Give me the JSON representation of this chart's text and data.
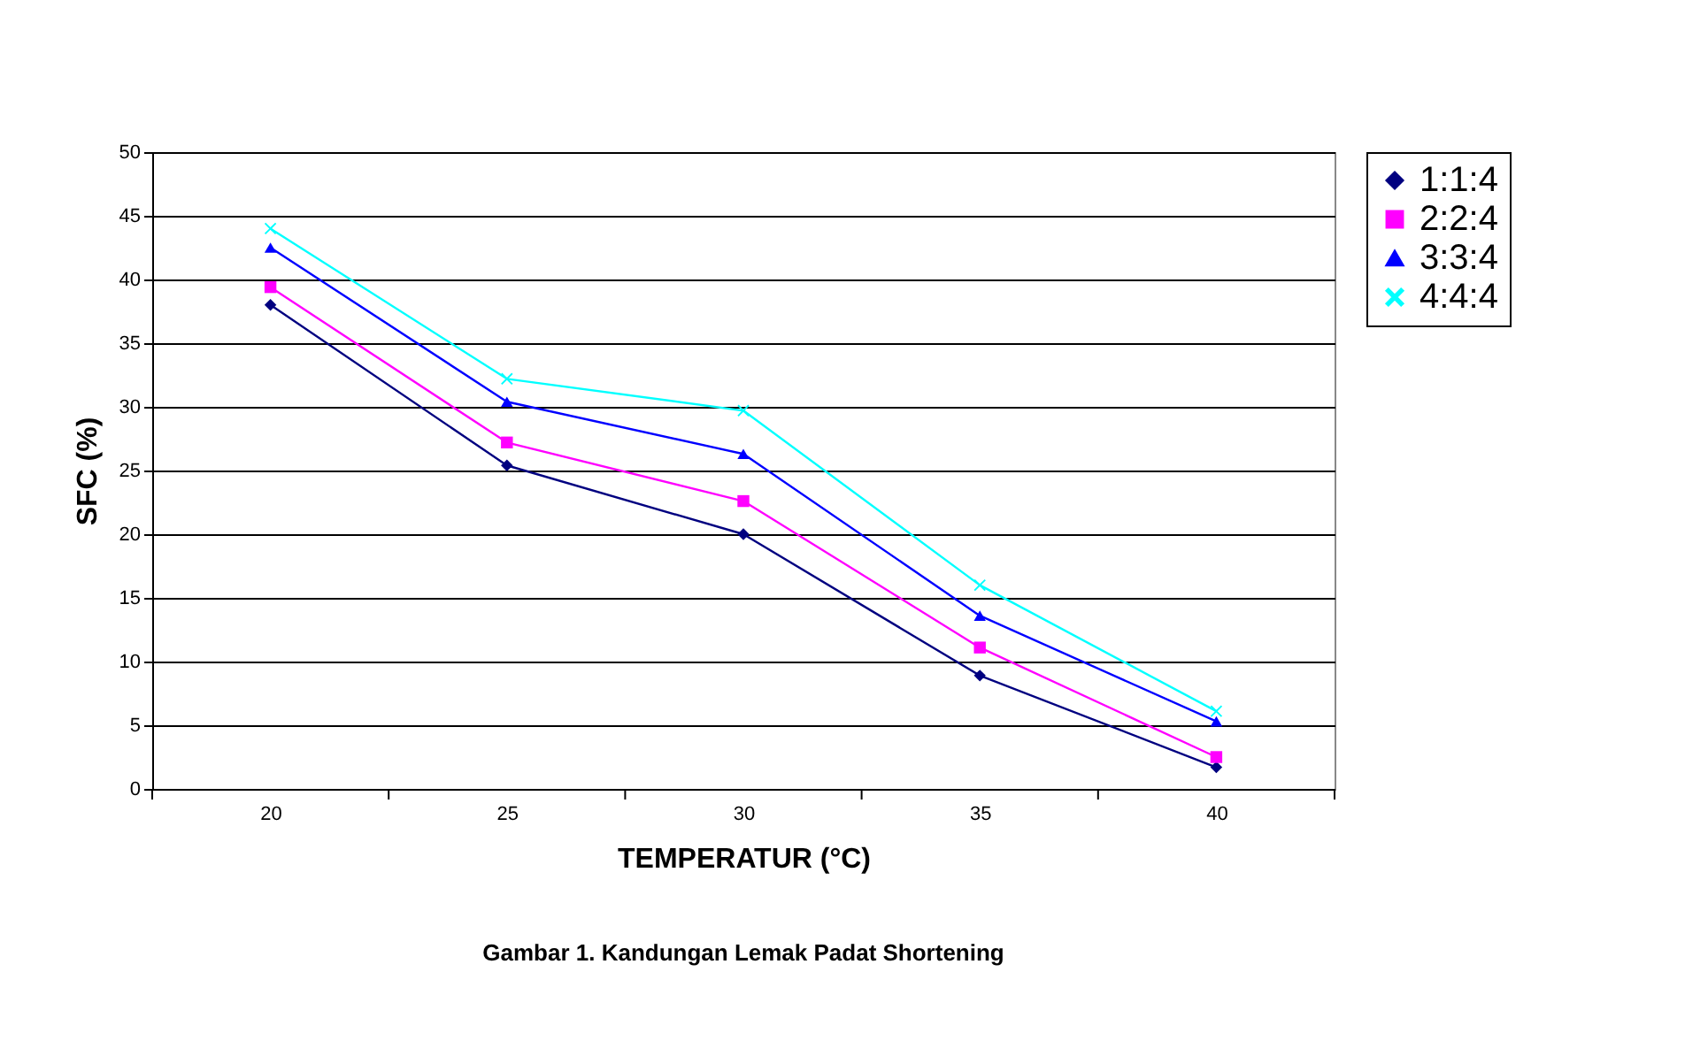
{
  "chart_data": {
    "type": "line",
    "title": "Gambar 1. Kandungan Lemak Padat Shortening",
    "xlabel": "TEMPERATUR (°C)",
    "ylabel": "SFC (%)",
    "categories": [
      "20",
      "25",
      "30",
      "35",
      "40"
    ],
    "series": [
      {
        "name": "1:1:4",
        "color": "#000080",
        "marker": "diamond",
        "values": [
          38,
          25.4,
          20,
          8.9,
          1.7
        ]
      },
      {
        "name": "2:2:4",
        "color": "#ff00ff",
        "marker": "square",
        "values": [
          39.4,
          27.2,
          22.6,
          11.1,
          2.5
        ]
      },
      {
        "name": "3:3:4",
        "color": "#0000ff",
        "marker": "triangle",
        "values": [
          42.5,
          30.4,
          26.3,
          13.6,
          5.3
        ]
      },
      {
        "name": "4:4:4",
        "color": "#00ffff",
        "marker": "cross",
        "values": [
          44,
          32.2,
          29.7,
          16,
          6.1
        ]
      }
    ],
    "ylim": [
      0,
      50
    ],
    "yticks": [
      0,
      5,
      10,
      15,
      20,
      25,
      30,
      35,
      40,
      45,
      50
    ],
    "grid": "y",
    "legend": "right",
    "line_style": "solid"
  }
}
